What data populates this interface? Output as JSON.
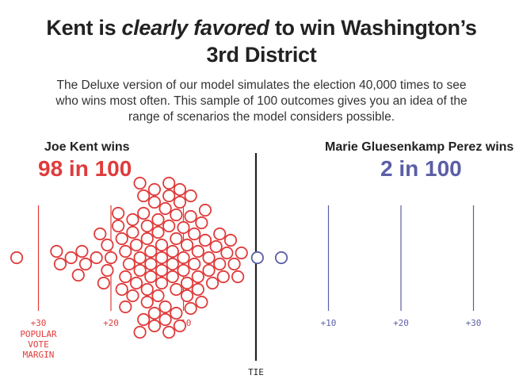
{
  "header": {
    "title_part1": "Kent is ",
    "title_emph": "clearly favored",
    "title_part2": " to win Washington’s",
    "title_line2": "3rd District",
    "subtitle": "The Deluxe version of our model simulates the election 40,000 times to see who wins most often. This sample of 100 outcomes gives you an idea of the range of scenarios the model considers possible."
  },
  "candidates": {
    "left": {
      "name": "Joe Kent wins",
      "score": "98 in 100",
      "color": "#e03b3b"
    },
    "right": {
      "name": "Marie Gluesenkamp Perez wins",
      "score": "2 in 100",
      "color": "#5b5ea6"
    }
  },
  "chart_data": {
    "type": "scatter",
    "x_label_lines": [
      "POPULAR",
      "VOTE",
      "MARGIN"
    ],
    "center_label": "TIE",
    "left_ticks": [
      {
        "value": -30,
        "label": "+30"
      },
      {
        "value": -20,
        "label": "+20"
      },
      {
        "value": -10,
        "label": "+10"
      }
    ],
    "right_ticks": [
      {
        "value": 10,
        "label": "+10"
      },
      {
        "value": 20,
        "label": "+20"
      },
      {
        "value": 30,
        "label": "+30"
      }
    ],
    "xlim": [
      -35,
      36
    ],
    "outcomes_total": 100,
    "kent_outcomes": 98,
    "gp_outcomes": 2,
    "kent_margins": [
      -33.0,
      -27.5,
      -27.0,
      -25.5,
      -24.5,
      -24.0,
      -23.5,
      -22.0,
      -21.5,
      -21.0,
      -20.5,
      -20.5,
      -20.0,
      -19.0,
      -19.0,
      -18.5,
      -18.5,
      -18.0,
      -18.0,
      -18.0,
      -17.5,
      -17.0,
      -17.0,
      -17.0,
      -16.5,
      -16.5,
      -16.0,
      -16.0,
      -16.0,
      -16.0,
      -15.5,
      -15.5,
      -15.5,
      -15.0,
      -15.0,
      -15.0,
      -15.0,
      -14.5,
      -14.5,
      -14.5,
      -14.0,
      -14.0,
      -14.0,
      -14.0,
      -13.5,
      -13.5,
      -13.5,
      -13.0,
      -13.0,
      -13.0,
      -13.0,
      -12.5,
      -12.5,
      -12.5,
      -12.0,
      -12.0,
      -12.0,
      -12.0,
      -11.5,
      -11.5,
      -11.5,
      -11.0,
      -11.0,
      -11.0,
      -11.0,
      -10.5,
      -10.5,
      -10.5,
      -10.0,
      -10.0,
      -10.0,
      -9.5,
      -9.5,
      -9.5,
      -9.0,
      -9.0,
      -9.0,
      -8.5,
      -8.5,
      -8.0,
      -8.0,
      -8.0,
      -7.5,
      -7.5,
      -7.0,
      -7.0,
      -6.5,
      -6.5,
      -6.0,
      -5.5,
      -5.0,
      -5.0,
      -4.5,
      -4.0,
      -3.5,
      -3.0,
      -2.5,
      -2.0
    ],
    "gp_margins": [
      0.2,
      3.5
    ]
  }
}
